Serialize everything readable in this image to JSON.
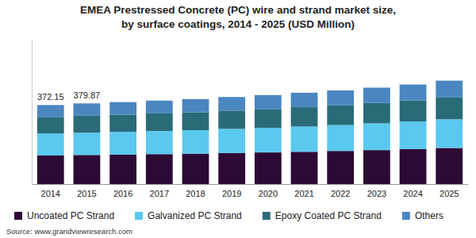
{
  "chart_data": {
    "type": "bar",
    "title": "EMEA Prestressed Concrete (PC) wire and strand market size,",
    "subtitle": "by surface coatings, 2014 - 2025 (USD Million)",
    "source": "Source: www.grandviewresearch.com",
    "categories": [
      "2014",
      "2015",
      "2016",
      "2017",
      "2018",
      "2019",
      "2020",
      "2021",
      "2022",
      "2023",
      "2024",
      "2025"
    ],
    "series": [
      {
        "name": "Uncoated PC Strand",
        "color": "#2d0a35",
        "values": [
          134.5,
          137,
          139,
          141,
          143,
          146,
          149,
          152,
          156,
          160,
          165,
          170
        ]
      },
      {
        "name": "Galvanized PC Strand",
        "color": "#5bc8f0",
        "values": [
          104.2,
          105,
          107,
          109,
          111,
          114,
          116,
          119,
          122,
          126,
          130,
          135
        ]
      },
      {
        "name": "Epoxy Coated PC Strand",
        "color": "#2a6b78",
        "values": [
          77.6,
          80,
          81,
          83,
          84,
          86,
          88,
          91,
          93,
          96,
          99,
          103
        ]
      },
      {
        "name": "Others",
        "color": "#4a86c0",
        "values": [
          55.85,
          57.87,
          59,
          60,
          62,
          64,
          66,
          68,
          70,
          72,
          75,
          79
        ]
      }
    ],
    "annotations": [
      {
        "category": "2014",
        "value": 372.15,
        "label": "372.15"
      },
      {
        "category": "2015",
        "value": 379.87,
        "label": "379.87"
      }
    ],
    "ylim": [
      0,
      680
    ],
    "stacked": true,
    "legend": "bottom",
    "tick_labels": "x"
  }
}
